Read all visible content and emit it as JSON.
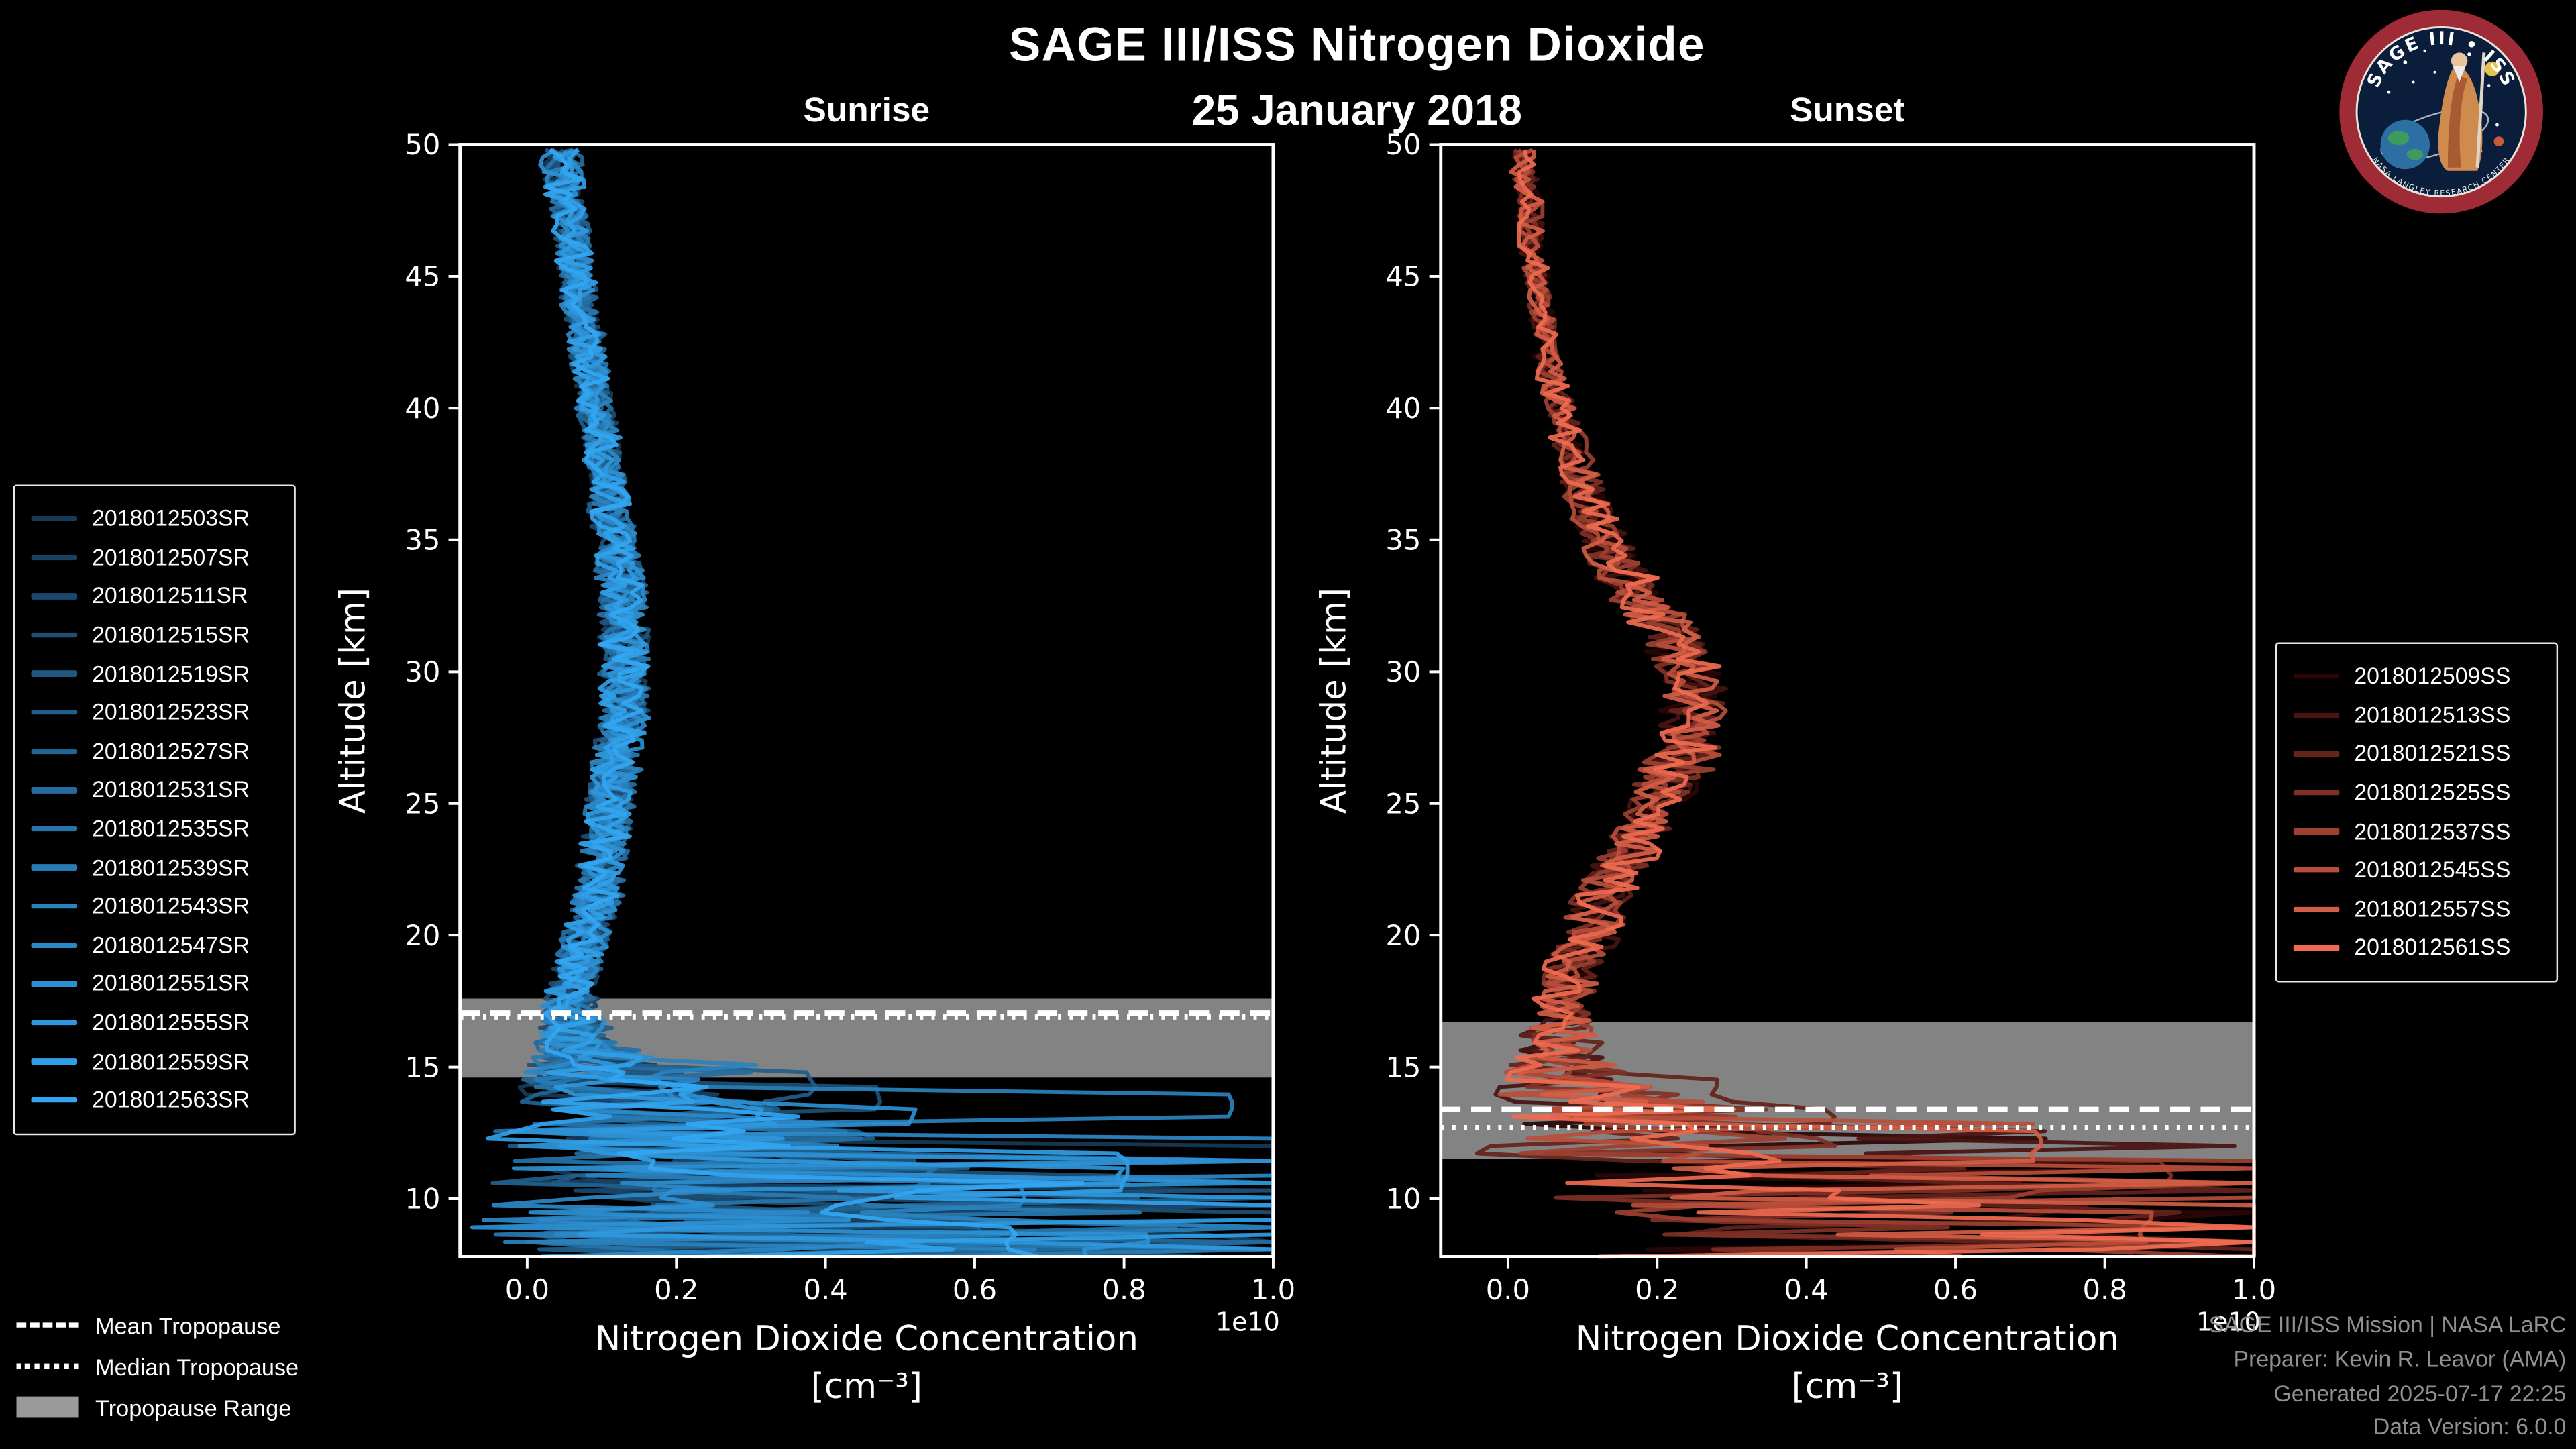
{
  "meta": {
    "title": "SAGE III/ISS Nitrogen Dioxide",
    "date": "25 January 2018"
  },
  "logo": {
    "name": "sage-iii-iss-mission-patch",
    "arc_text_top": "SAGE III • ISS",
    "arc_text_bottom": "NASA LANGLEY RESEARCH CENTER"
  },
  "tropopause_legend": {
    "mean_label": "Mean Tropopause",
    "median_label": "Median Tropopause",
    "range_label": "Tropopause Range"
  },
  "footer": {
    "lines": [
      "SAGE III/ISS Mission | NASA LaRC",
      "Preparer: Kevin R. Leavor (AMA)",
      "Generated 2025-07-17 22:25",
      "Data Version: 6.0.0"
    ]
  },
  "chart_data": [
    {
      "type": "line",
      "title": "Sunrise",
      "xlabel": "Nitrogen Dioxide Concentration",
      "xlabel_units": "[cm⁻³]",
      "ylabel": "Altitude [km]",
      "x_offset_label": "1e10",
      "xlim": [
        -0.09,
        1.0
      ],
      "ylim": [
        7.8,
        50
      ],
      "xticks": [
        0.0,
        0.2,
        0.4,
        0.6,
        0.8,
        1.0
      ],
      "yticks": [
        10,
        15,
        20,
        25,
        30,
        35,
        40,
        45,
        50
      ],
      "grid": false,
      "legend_position": "outside-left",
      "tropopause_band_color": "#9a9a9a",
      "tropopause_line_color": "#ffffff",
      "tropopause": {
        "mean_km": 17.05,
        "median_km": 16.9,
        "range_km": [
          14.6,
          17.6
        ]
      },
      "spike_below_km": 15.2,
      "profile_altitude_km": [
        8,
        9,
        10,
        11,
        12,
        13,
        14,
        15,
        16,
        17,
        18,
        19,
        20,
        21,
        22,
        23,
        24,
        25,
        26,
        27,
        28,
        29,
        30,
        31,
        32,
        33,
        34,
        35,
        36,
        37,
        38,
        39,
        40,
        41,
        42,
        43,
        44,
        45,
        46,
        47,
        48,
        49,
        50
      ],
      "mean_concentration_1e10": [
        0.35,
        0.3,
        0.28,
        0.25,
        0.22,
        0.18,
        0.14,
        0.1,
        0.07,
        0.06,
        0.06,
        0.07,
        0.08,
        0.09,
        0.1,
        0.1,
        0.11,
        0.11,
        0.12,
        0.12,
        0.13,
        0.13,
        0.13,
        0.13,
        0.13,
        0.13,
        0.12,
        0.12,
        0.11,
        0.11,
        0.1,
        0.1,
        0.09,
        0.09,
        0.08,
        0.08,
        0.07,
        0.07,
        0.06,
        0.06,
        0.05,
        0.05,
        0.04
      ],
      "spread_1e10": [
        0.45,
        0.45,
        0.4,
        0.38,
        0.35,
        0.25,
        0.18,
        0.12,
        0.07,
        0.05,
        0.04,
        0.04,
        0.04,
        0.04,
        0.04,
        0.04,
        0.04,
        0.04,
        0.04,
        0.04,
        0.04,
        0.04,
        0.04,
        0.04,
        0.04,
        0.04,
        0.04,
        0.035,
        0.035,
        0.03,
        0.03,
        0.03,
        0.03,
        0.03,
        0.03,
        0.03,
        0.03,
        0.03,
        0.03,
        0.03,
        0.03,
        0.035,
        0.04
      ],
      "series": [
        {
          "name": "2018012503SR",
          "color": "#173a57"
        },
        {
          "name": "2018012507SR",
          "color": "#194161"
        },
        {
          "name": "2018012511SR",
          "color": "#1b486c"
        },
        {
          "name": "2018012515SR",
          "color": "#1d5076"
        },
        {
          "name": "2018012519SR",
          "color": "#1f5780"
        },
        {
          "name": "2018012523SR",
          "color": "#205e8b"
        },
        {
          "name": "2018012527SR",
          "color": "#226595"
        },
        {
          "name": "2018012531SR",
          "color": "#246c9f"
        },
        {
          "name": "2018012535SR",
          "color": "#2674aa"
        },
        {
          "name": "2018012539SR",
          "color": "#287bb4"
        },
        {
          "name": "2018012543SR",
          "color": "#2a82be"
        },
        {
          "name": "2018012547SR",
          "color": "#2c89c9"
        },
        {
          "name": "2018012551SR",
          "color": "#2d90d3"
        },
        {
          "name": "2018012555SR",
          "color": "#2f98dd"
        },
        {
          "name": "2018012559SR",
          "color": "#319fe8"
        },
        {
          "name": "2018012563SR",
          "color": "#33a6f2"
        }
      ]
    },
    {
      "type": "line",
      "title": "Sunset",
      "xlabel": "Nitrogen Dioxide Concentration",
      "xlabel_units": "[cm⁻³]",
      "ylabel": "Altitude [km]",
      "x_offset_label": "1e10",
      "xlim": [
        -0.09,
        1.0
      ],
      "ylim": [
        7.8,
        50
      ],
      "xticks": [
        0.0,
        0.2,
        0.4,
        0.6,
        0.8,
        1.0
      ],
      "yticks": [
        10,
        15,
        20,
        25,
        30,
        35,
        40,
        45,
        50
      ],
      "grid": false,
      "legend_position": "outside-right",
      "tropopause_band_color": "#9a9a9a",
      "tropopause_line_color": "#ffffff",
      "tropopause": {
        "mean_km": 13.4,
        "median_km": 12.7,
        "range_km": [
          11.5,
          16.7
        ]
      },
      "spike_below_km": 14.2,
      "profile_altitude_km": [
        8,
        9,
        10,
        11,
        12,
        13,
        14,
        15,
        16,
        17,
        18,
        19,
        20,
        21,
        22,
        23,
        24,
        25,
        26,
        27,
        28,
        29,
        30,
        31,
        32,
        33,
        34,
        35,
        36,
        37,
        38,
        39,
        40,
        41,
        42,
        43,
        44,
        45,
        46,
        47,
        48,
        49,
        50
      ],
      "mean_concentration_1e10": [
        0.5,
        0.48,
        0.42,
        0.32,
        0.24,
        0.16,
        0.11,
        0.08,
        0.07,
        0.07,
        0.08,
        0.09,
        0.11,
        0.12,
        0.14,
        0.16,
        0.18,
        0.2,
        0.22,
        0.24,
        0.25,
        0.25,
        0.24,
        0.22,
        0.2,
        0.17,
        0.15,
        0.13,
        0.11,
        0.1,
        0.09,
        0.08,
        0.07,
        0.06,
        0.05,
        0.05,
        0.04,
        0.04,
        0.03,
        0.03,
        0.03,
        0.02,
        0.02
      ],
      "spread_1e10": [
        0.45,
        0.45,
        0.42,
        0.4,
        0.35,
        0.25,
        0.15,
        0.1,
        0.07,
        0.05,
        0.05,
        0.05,
        0.05,
        0.05,
        0.05,
        0.05,
        0.05,
        0.05,
        0.06,
        0.06,
        0.06,
        0.06,
        0.06,
        0.06,
        0.05,
        0.05,
        0.05,
        0.04,
        0.04,
        0.035,
        0.03,
        0.03,
        0.025,
        0.025,
        0.02,
        0.02,
        0.02,
        0.02,
        0.02,
        0.02,
        0.02,
        0.02,
        0.02
      ],
      "series": [
        {
          "name": "2018012509SS",
          "color": "#2d0606"
        },
        {
          "name": "2018012513SS",
          "color": "#491411"
        },
        {
          "name": "2018012521SS",
          "color": "#64231b"
        },
        {
          "name": "2018012525SS",
          "color": "#803126"
        },
        {
          "name": "2018012537SS",
          "color": "#9c4030"
        },
        {
          "name": "2018012545SS",
          "color": "#b84e3b"
        },
        {
          "name": "2018012557SS",
          "color": "#d35d45"
        },
        {
          "name": "2018012561SS",
          "color": "#ef6b50"
        }
      ]
    }
  ]
}
